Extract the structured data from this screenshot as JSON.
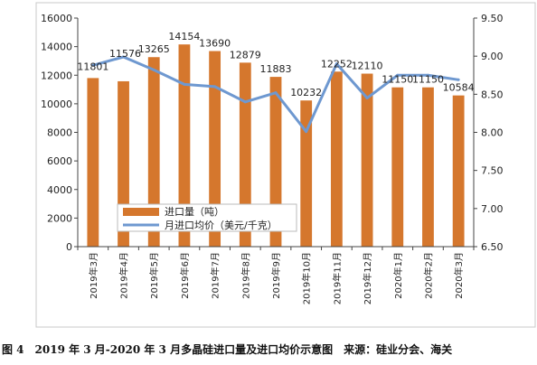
{
  "chart_data": {
    "type": "bar+line",
    "categories": [
      "2019年3月",
      "2019年4月",
      "2019年5月",
      "2019年6月",
      "2019年7月",
      "2019年8月",
      "2019年9月",
      "2019年10月",
      "2019年11月",
      "2019年12月",
      "2020年1月",
      "2020年2月",
      "2020年3月"
    ],
    "series": [
      {
        "name": "进口量（吨）",
        "type": "bar",
        "axis": "left",
        "color": "#D5772D",
        "values": [
          11801,
          11576,
          13265,
          14154,
          13690,
          12879,
          11883,
          10232,
          12252,
          12110,
          11150,
          11150,
          10584
        ]
      },
      {
        "name": "月进口均价（美元/千克）",
        "type": "line",
        "axis": "right",
        "color": "#6E98D0",
        "values": [
          8.88,
          8.99,
          8.82,
          8.63,
          8.6,
          8.4,
          8.52,
          8.01,
          8.9,
          8.45,
          8.75,
          8.75,
          8.69
        ]
      }
    ],
    "y_left": {
      "min": 0,
      "max": 16000,
      "step": 2000,
      "ticks": [
        "0",
        "2000",
        "4000",
        "6000",
        "8000",
        "10000",
        "12000",
        "14000",
        "16000"
      ]
    },
    "y_right": {
      "min": 6.5,
      "max": 9.5,
      "step": 0.5,
      "ticks": [
        "6.50",
        "7.00",
        "7.50",
        "8.00",
        "8.50",
        "9.00",
        "9.50"
      ]
    },
    "data_labels": [
      "11801",
      "11576",
      "13265",
      "14154",
      "13690",
      "12879",
      "11883",
      "10232",
      "12252",
      "12110",
      "11150",
      "11150",
      "10584"
    ],
    "grid": false,
    "legend": "inside-bottom-left"
  },
  "caption": "图 4　2019 年 3 月-2020 年 3 月多晶硅进口量及进口均价示意图　来源：硅业分会、海关"
}
